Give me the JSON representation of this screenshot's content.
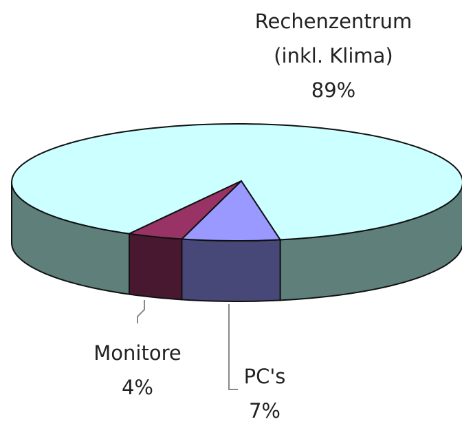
{
  "chart_data": {
    "type": "pie",
    "categories": [
      "Rechenzentrum (inkl. Klima)",
      "Monitore",
      "PC's"
    ],
    "values": [
      89,
      4,
      7
    ],
    "value_labels": [
      "89%",
      "4%",
      "7%"
    ],
    "colors": [
      "#ccffff",
      "#993366",
      "#9999ff"
    ]
  }
}
